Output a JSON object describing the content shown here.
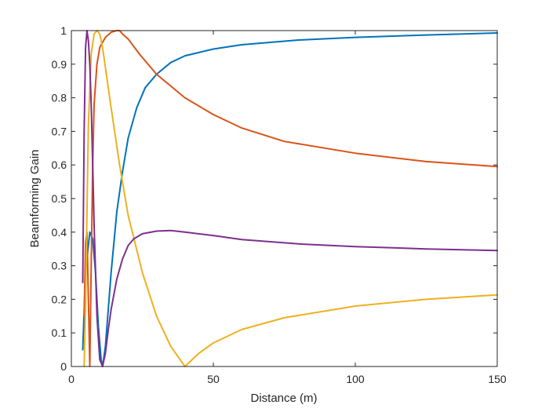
{
  "chart_data": {
    "type": "line",
    "title": "",
    "xlabel": "Distance (m)",
    "ylabel": "Beamforming Gain",
    "xlim": [
      0,
      150
    ],
    "ylim": [
      0,
      1
    ],
    "xticks": [
      0,
      50,
      100,
      150
    ],
    "yticks": [
      0,
      0.1,
      0.2,
      0.3,
      0.4,
      0.5,
      0.6,
      0.7,
      0.8,
      0.9,
      1
    ],
    "grid": false,
    "legend": "none",
    "series": [
      {
        "color": "#0072BD",
        "x": [
          4,
          5,
          6.5,
          7.5,
          8.5,
          9.5,
          10.5,
          11,
          12,
          14,
          16,
          18,
          20,
          23,
          26,
          30,
          35,
          40,
          50,
          60,
          80,
          100,
          125,
          150
        ],
        "y": [
          0.05,
          0.28,
          0.4,
          0.38,
          0.28,
          0.12,
          0.02,
          0.0,
          0.06,
          0.28,
          0.46,
          0.58,
          0.68,
          0.77,
          0.83,
          0.87,
          0.905,
          0.925,
          0.945,
          0.958,
          0.972,
          0.98,
          0.987,
          0.993
        ]
      },
      {
        "color": "#D95319",
        "x": [
          4.5,
          5,
          5.5,
          6,
          6.5,
          7,
          7.5,
          8,
          9,
          10,
          12,
          14,
          16,
          17,
          18,
          20,
          24,
          30,
          40,
          50,
          60,
          75,
          100,
          125,
          150
        ],
        "y": [
          0.15,
          0.37,
          0.4,
          0.2,
          0.0,
          0.3,
          0.6,
          0.78,
          0.9,
          0.95,
          0.98,
          0.995,
          1.0,
          1.0,
          0.99,
          0.975,
          0.93,
          0.87,
          0.8,
          0.75,
          0.71,
          0.67,
          0.635,
          0.61,
          0.595
        ]
      },
      {
        "color": "#EDB120",
        "x": [
          4.5,
          5,
          5.5,
          6,
          7,
          8,
          9,
          10,
          11,
          12,
          14,
          17,
          20,
          25,
          30,
          35,
          40,
          45,
          50,
          60,
          75,
          100,
          125,
          150
        ],
        "y": [
          0.0,
          0.18,
          0.46,
          0.72,
          0.93,
          0.99,
          1.0,
          0.99,
          0.95,
          0.89,
          0.77,
          0.6,
          0.45,
          0.28,
          0.15,
          0.06,
          0.0,
          0.04,
          0.07,
          0.11,
          0.145,
          0.18,
          0.2,
          0.213
        ]
      },
      {
        "color": "#7E2F8E",
        "x": [
          4,
          4.5,
          5,
          5.5,
          6,
          6.5,
          7,
          7.5,
          8,
          9,
          10,
          11,
          12,
          13,
          14,
          16,
          18,
          20,
          22,
          25,
          30,
          35,
          40,
          50,
          60,
          80,
          100,
          125,
          150
        ],
        "y": [
          0.25,
          0.7,
          0.95,
          1.0,
          0.97,
          0.9,
          0.78,
          0.6,
          0.42,
          0.15,
          0.02,
          0.0,
          0.04,
          0.11,
          0.17,
          0.26,
          0.32,
          0.36,
          0.38,
          0.395,
          0.403,
          0.405,
          0.4,
          0.39,
          0.378,
          0.365,
          0.357,
          0.35,
          0.345
        ]
      }
    ]
  }
}
